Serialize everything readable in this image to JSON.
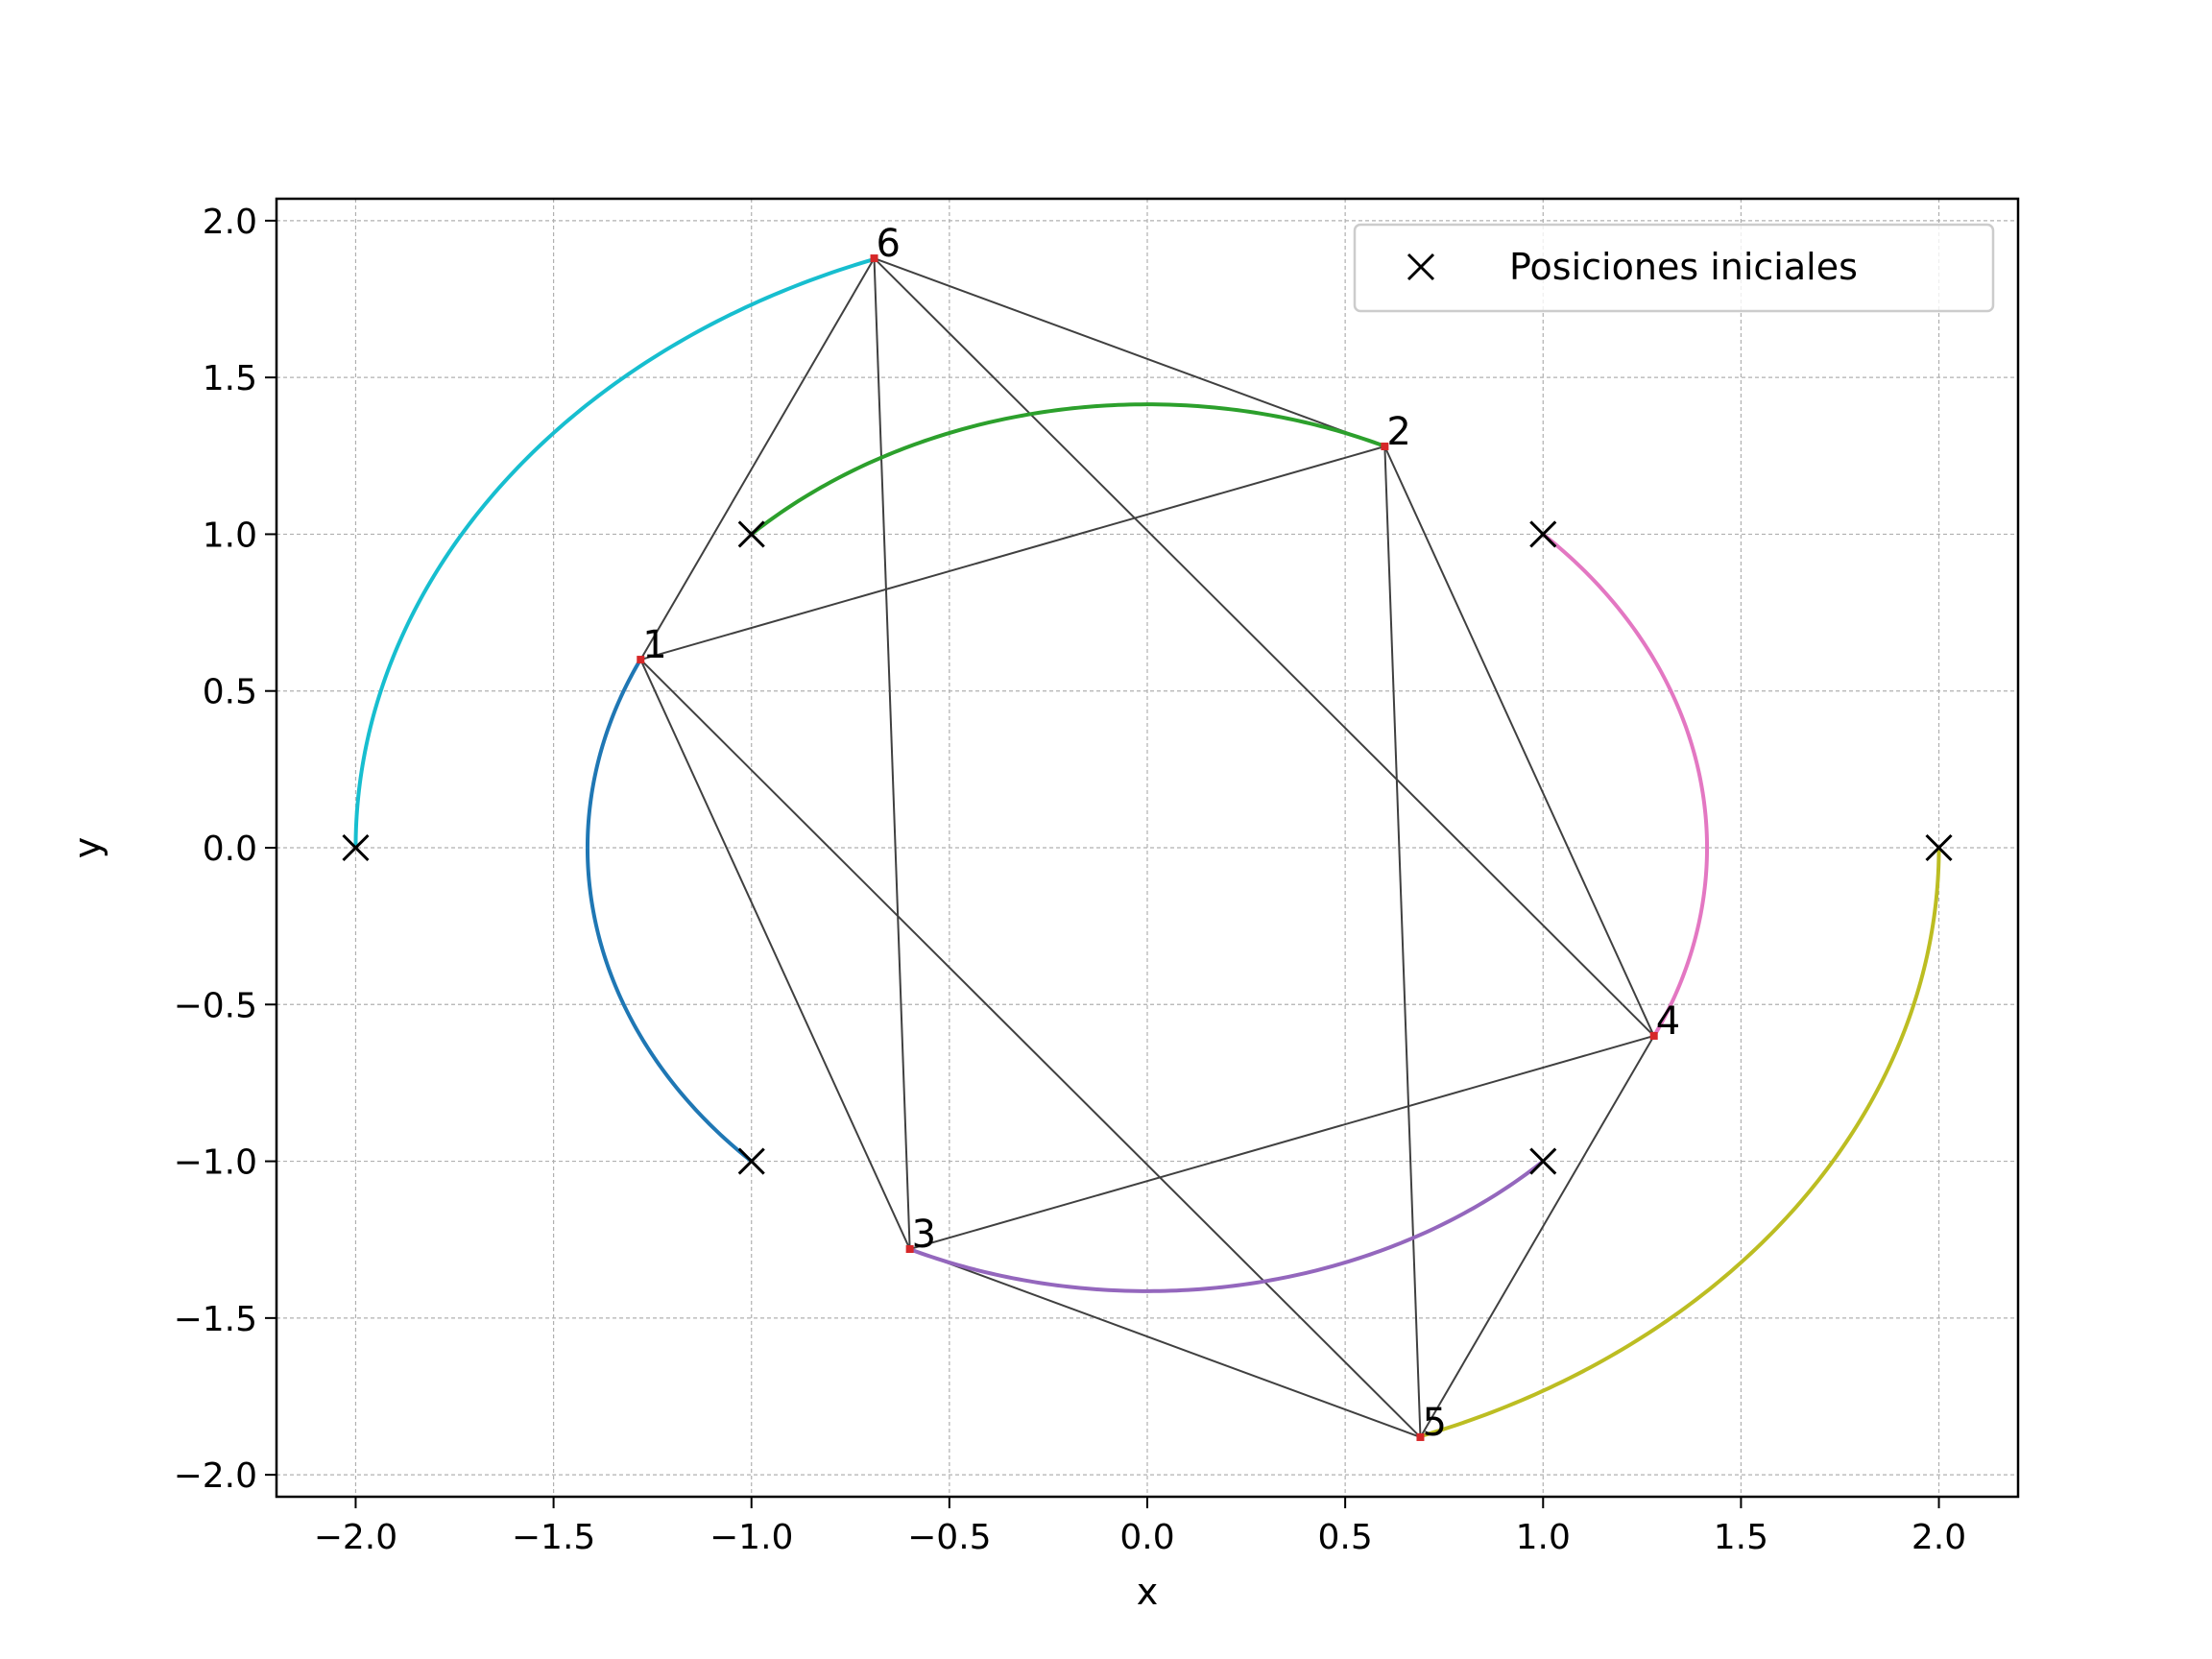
{
  "chart_data": {
    "type": "line",
    "title": "",
    "xlabel": "x",
    "ylabel": "y",
    "xlim": [
      -2.2,
      2.2
    ],
    "ylim": [
      -2.07,
      2.07
    ],
    "xticks": [
      -2.0,
      -1.5,
      -1.0,
      -0.5,
      0.0,
      0.5,
      1.0,
      1.5,
      2.0
    ],
    "yticks": [
      -2.0,
      -1.5,
      -1.0,
      -0.5,
      0.0,
      0.5,
      1.0,
      1.5,
      2.0
    ],
    "xtick_labels": [
      "−2.0",
      "−1.5",
      "−1.0",
      "−0.5",
      "0.0",
      "0.5",
      "1.0",
      "1.5",
      "2.0"
    ],
    "ytick_labels": [
      "−2.0",
      "−1.5",
      "−1.0",
      "−0.5",
      "0.0",
      "0.5",
      "1.0",
      "1.5",
      "2.0"
    ],
    "grid": true,
    "legend": {
      "position": "top-right",
      "entries": [
        {
          "marker": "x",
          "label": "Posiciones iniciales"
        }
      ]
    },
    "initial_positions": [
      [
        -1.0,
        -1.0
      ],
      [
        -1.0,
        1.0
      ],
      [
        1.0,
        -1.0
      ],
      [
        1.0,
        1.0
      ],
      [
        2.0,
        0.0
      ],
      [
        -2.0,
        0.0
      ]
    ],
    "final_points": [
      {
        "label": "1",
        "x": -1.28,
        "y": 0.6
      },
      {
        "label": "2",
        "x": 0.6,
        "y": 1.28
      },
      {
        "label": "3",
        "x": -0.6,
        "y": -1.28
      },
      {
        "label": "4",
        "x": 1.28,
        "y": -0.6
      },
      {
        "label": "5",
        "x": 0.69,
        "y": -1.88
      },
      {
        "label": "6",
        "x": -0.69,
        "y": 1.88
      }
    ],
    "trajectories": [
      {
        "color": "#1f77b4",
        "radius": 1.4142,
        "start_angle_deg": 225,
        "end_angle_deg": 155,
        "point": "1"
      },
      {
        "color": "#2ca02c",
        "radius": 1.4142,
        "start_angle_deg": 135,
        "end_angle_deg": 65,
        "point": "2"
      },
      {
        "color": "#9467bd",
        "radius": 1.4142,
        "start_angle_deg": 315,
        "end_angle_deg": 245,
        "point": "3"
      },
      {
        "color": "#e377c2",
        "radius": 1.4142,
        "start_angle_deg": 45,
        "end_angle_deg": -25,
        "point": "4"
      },
      {
        "color": "#bcbd22",
        "radius": 2.0,
        "start_angle_deg": 0,
        "end_angle_deg": -70,
        "point": "5"
      },
      {
        "color": "#17becf",
        "radius": 2.0,
        "start_angle_deg": 180,
        "end_angle_deg": 110,
        "point": "6"
      }
    ],
    "edges": [
      [
        "1",
        "2"
      ],
      [
        "1",
        "6"
      ],
      [
        "1",
        "3"
      ],
      [
        "1",
        "5"
      ],
      [
        "2",
        "6"
      ],
      [
        "2",
        "4"
      ],
      [
        "2",
        "5"
      ],
      [
        "3",
        "6"
      ],
      [
        "3",
        "4"
      ],
      [
        "3",
        "5"
      ],
      [
        "4",
        "5"
      ],
      [
        "4",
        "6"
      ]
    ]
  }
}
